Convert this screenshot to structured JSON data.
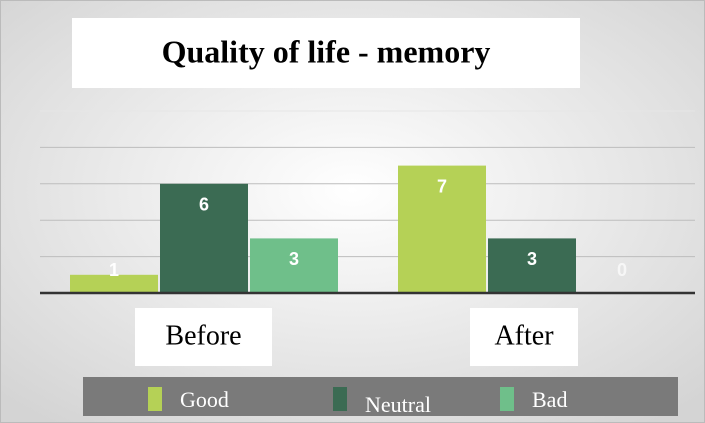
{
  "chart_data": {
    "type": "bar",
    "title": "Quality of life - memory",
    "categories": [
      "Before",
      "After"
    ],
    "series": [
      {
        "name": "Good",
        "color": "#b5d156",
        "values": [
          1,
          7
        ]
      },
      {
        "name": "Neutral",
        "color": "#3b6b53",
        "values": [
          6,
          3
        ]
      },
      {
        "name": "Bad",
        "color": "#6fbf8a",
        "values": [
          3,
          0
        ]
      }
    ],
    "ylim": [
      0,
      10
    ],
    "yticks": [
      0,
      2,
      4,
      6,
      8,
      10
    ],
    "grid": true,
    "legend": "bottom"
  }
}
